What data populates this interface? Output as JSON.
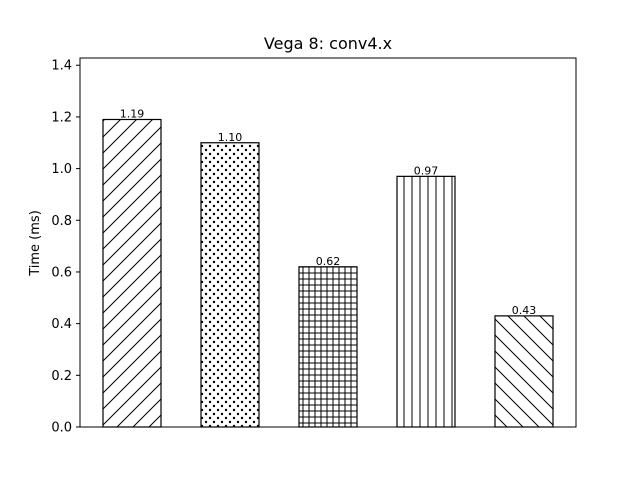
{
  "chart_data": {
    "type": "bar",
    "title": "Vega 8: conv4.x",
    "xlabel": "",
    "ylabel": "Time (ms)",
    "ylim": [
      0,
      1.428
    ],
    "yticks": [
      0.0,
      0.2,
      0.4,
      0.6,
      0.8,
      1.0,
      1.2,
      1.4
    ],
    "ytick_labels": [
      "0.0",
      "0.2",
      "0.4",
      "0.6",
      "0.8",
      "1.0",
      "1.2",
      "1.4"
    ],
    "grid": false,
    "bar_fill": "#ffffff",
    "bar_edge": "#000000",
    "bars": [
      {
        "value": 1.19,
        "label": "1.19",
        "hatch": "diagonal-forward"
      },
      {
        "value": 1.1,
        "label": "1.10",
        "hatch": "dots"
      },
      {
        "value": 0.62,
        "label": "0.62",
        "hatch": "grid"
      },
      {
        "value": 0.97,
        "label": "0.97",
        "hatch": "vertical"
      },
      {
        "value": 0.43,
        "label": "0.43",
        "hatch": "diagonal-backward"
      }
    ]
  }
}
